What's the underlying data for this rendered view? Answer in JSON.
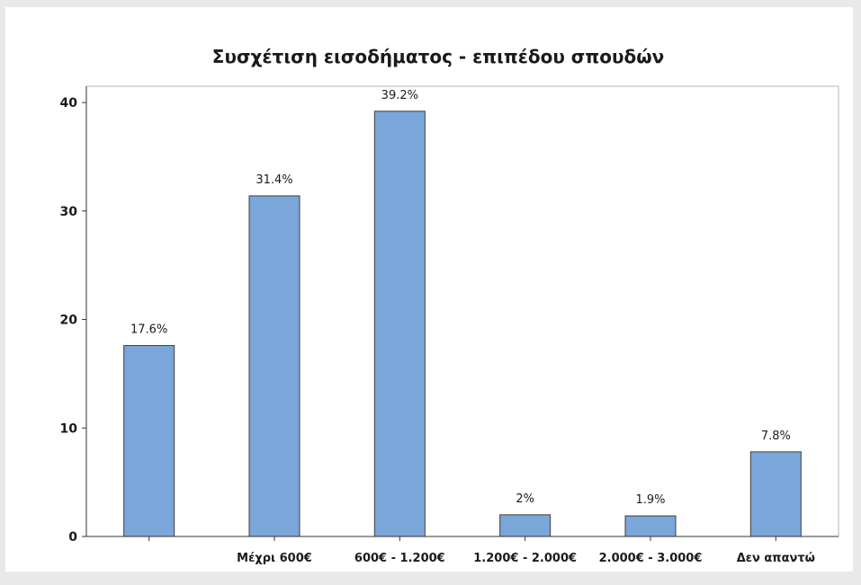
{
  "chart_data": {
    "type": "bar",
    "title": "Συσχέτιση εισοδήματος - επιπέδου σπουδών",
    "xlabel": "",
    "ylabel": "",
    "categories": [
      "",
      "Μέχρι 600€",
      "600€ - 1.200€",
      "1.200€ - 2.000€",
      "2.000€ - 3.000€",
      "Δεν απαντώ"
    ],
    "values": [
      17.6,
      31.4,
      39.2,
      2,
      1.9,
      7.8
    ],
    "data_labels": [
      "17.6%",
      "31.4%",
      "39.2%",
      "2%",
      "1.9%",
      "7.8%"
    ],
    "ylim": [
      0,
      41.5
    ],
    "yticks": [
      0,
      10,
      20,
      30,
      40
    ],
    "ytick_labels": [
      "0",
      "10",
      "20",
      "30",
      "40"
    ],
    "grid": false,
    "bar_color": "#7aa6d9",
    "bar_edge_color": "#3f3f3f"
  }
}
